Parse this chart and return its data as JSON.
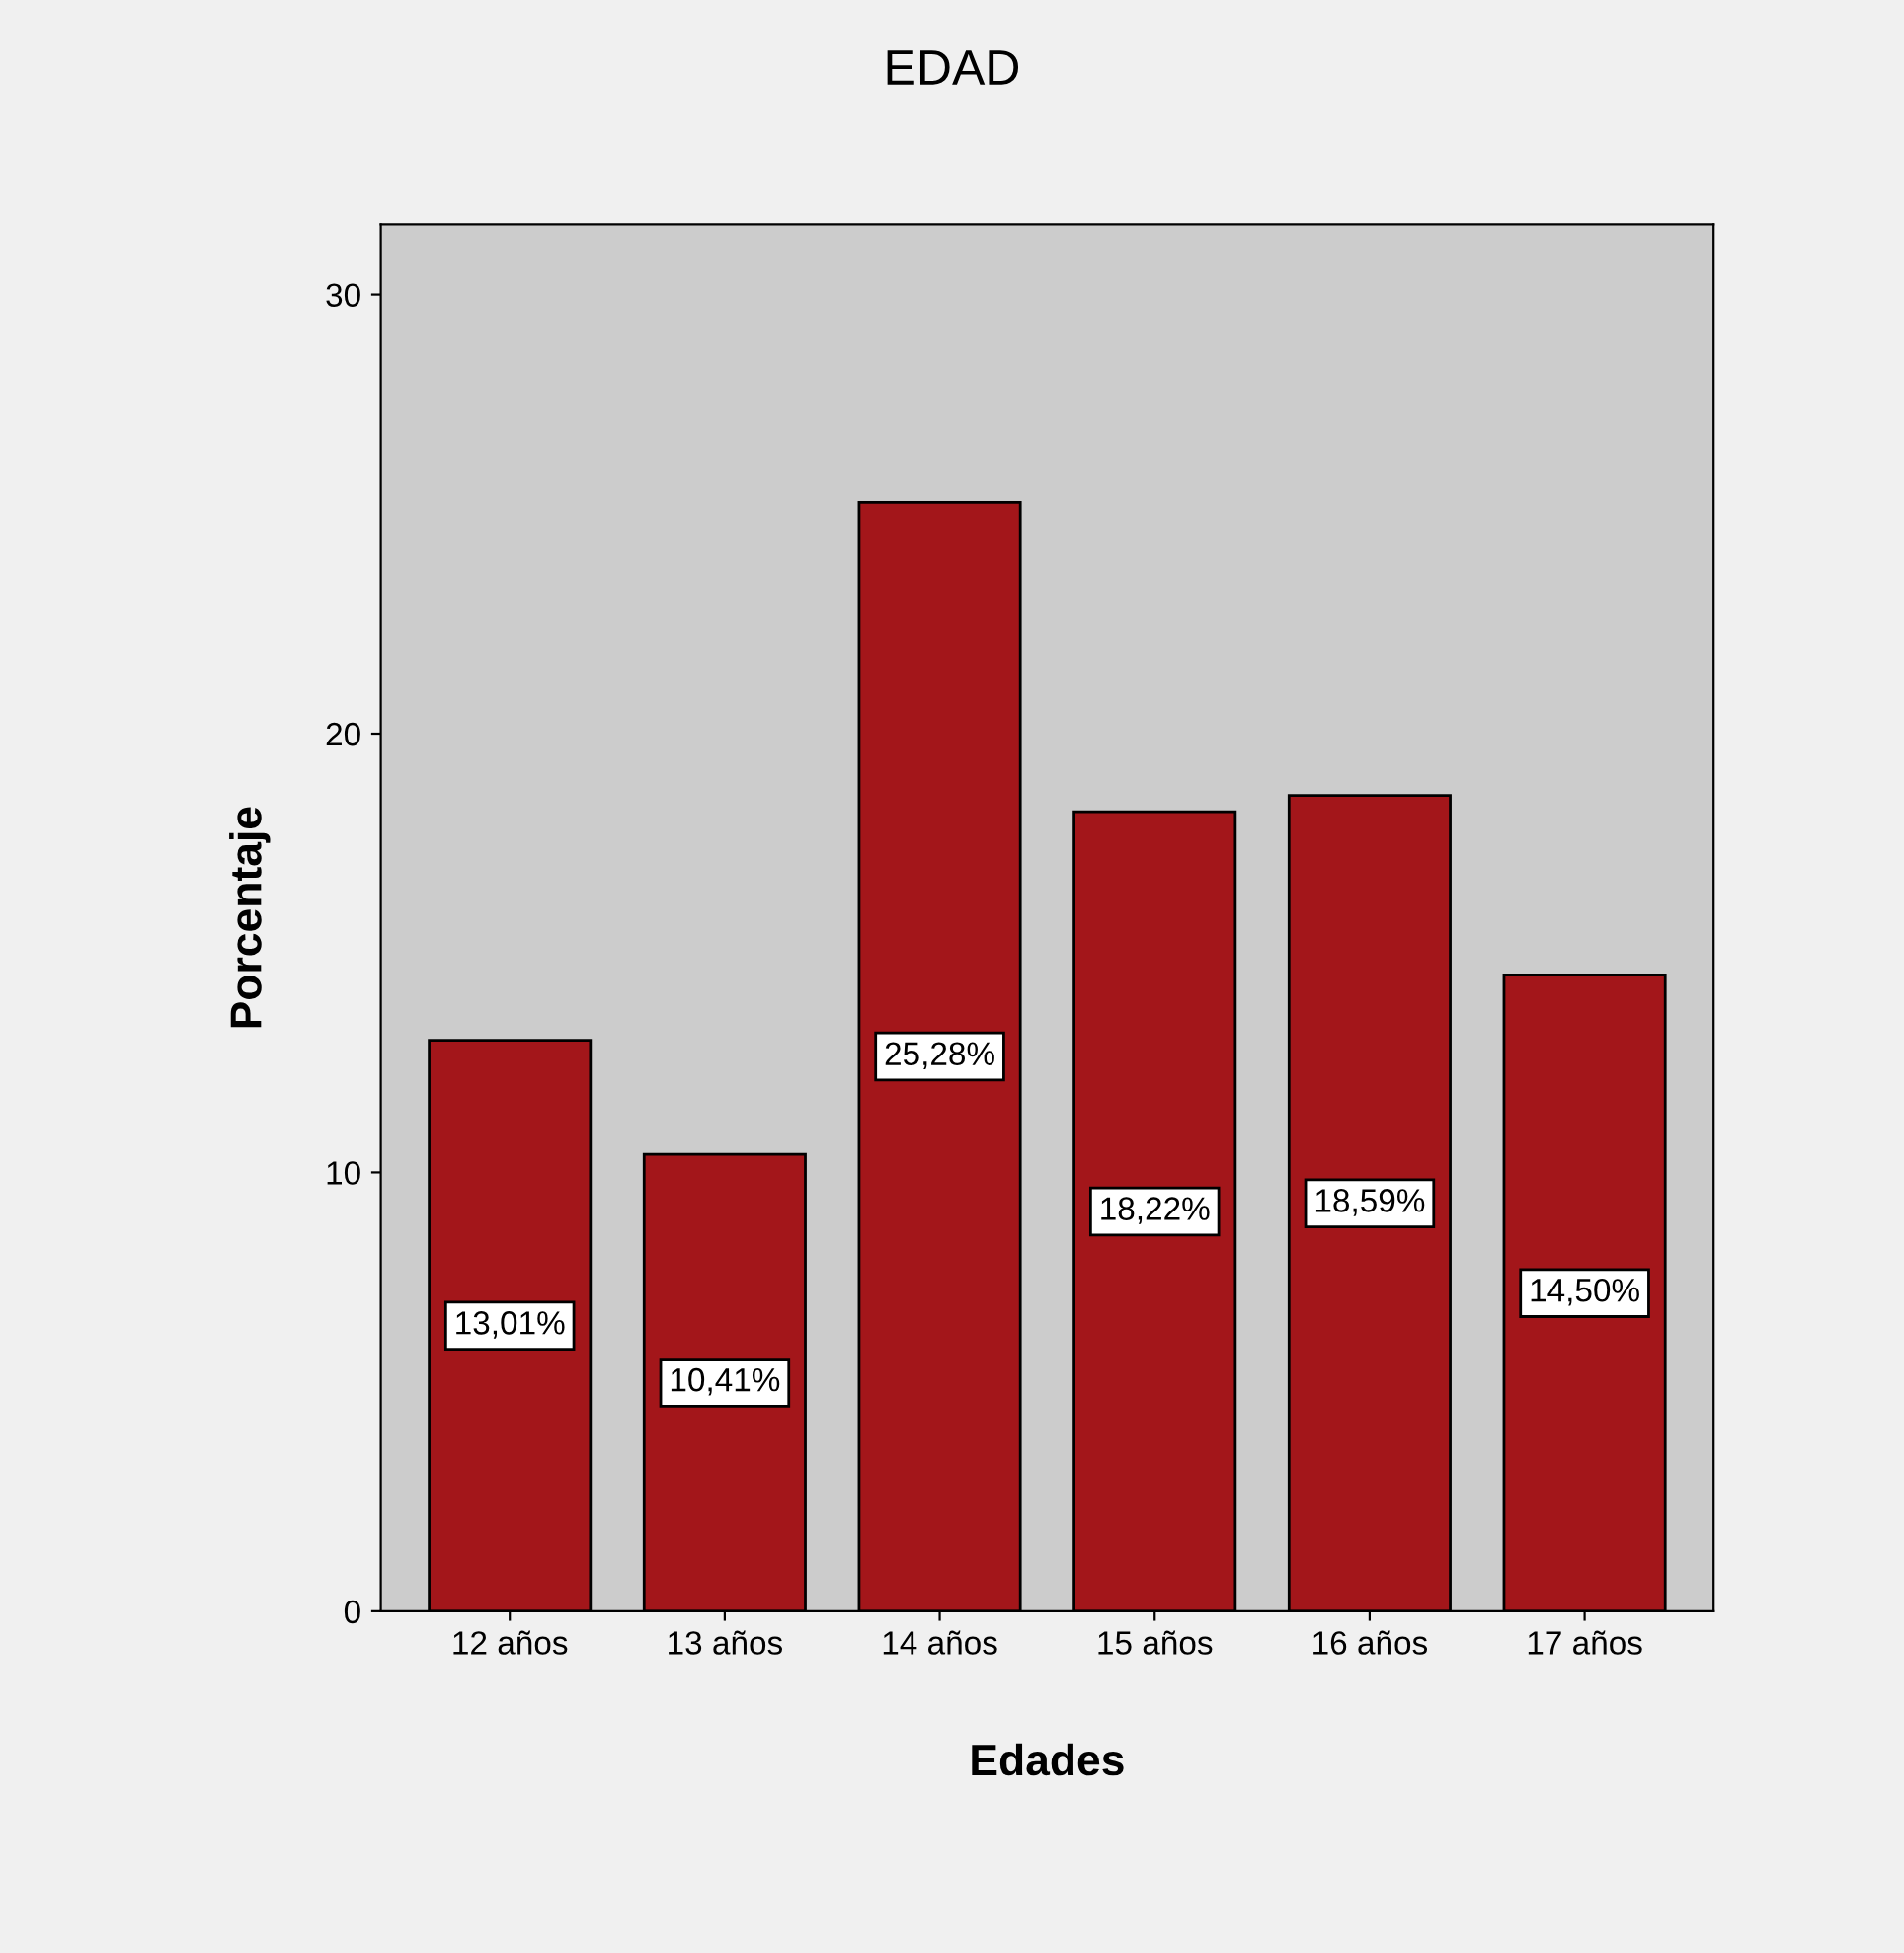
{
  "chart_data": {
    "type": "bar",
    "title": "EDAD",
    "xlabel": "Edades",
    "ylabel": "Porcentaje",
    "categories": [
      "12 años",
      "13 años",
      "14 años",
      "15 años",
      "16 años",
      "17 años"
    ],
    "values": [
      13.01,
      10.41,
      25.28,
      18.22,
      18.59,
      14.5
    ],
    "value_labels": [
      "13,01%",
      "10,41%",
      "25,28%",
      "18,22%",
      "18,59%",
      "14,50%"
    ],
    "color": "#a3161a",
    "ylim": [
      0,
      31.6
    ],
    "yticks": [
      0,
      10,
      20,
      30
    ],
    "grid": false
  }
}
